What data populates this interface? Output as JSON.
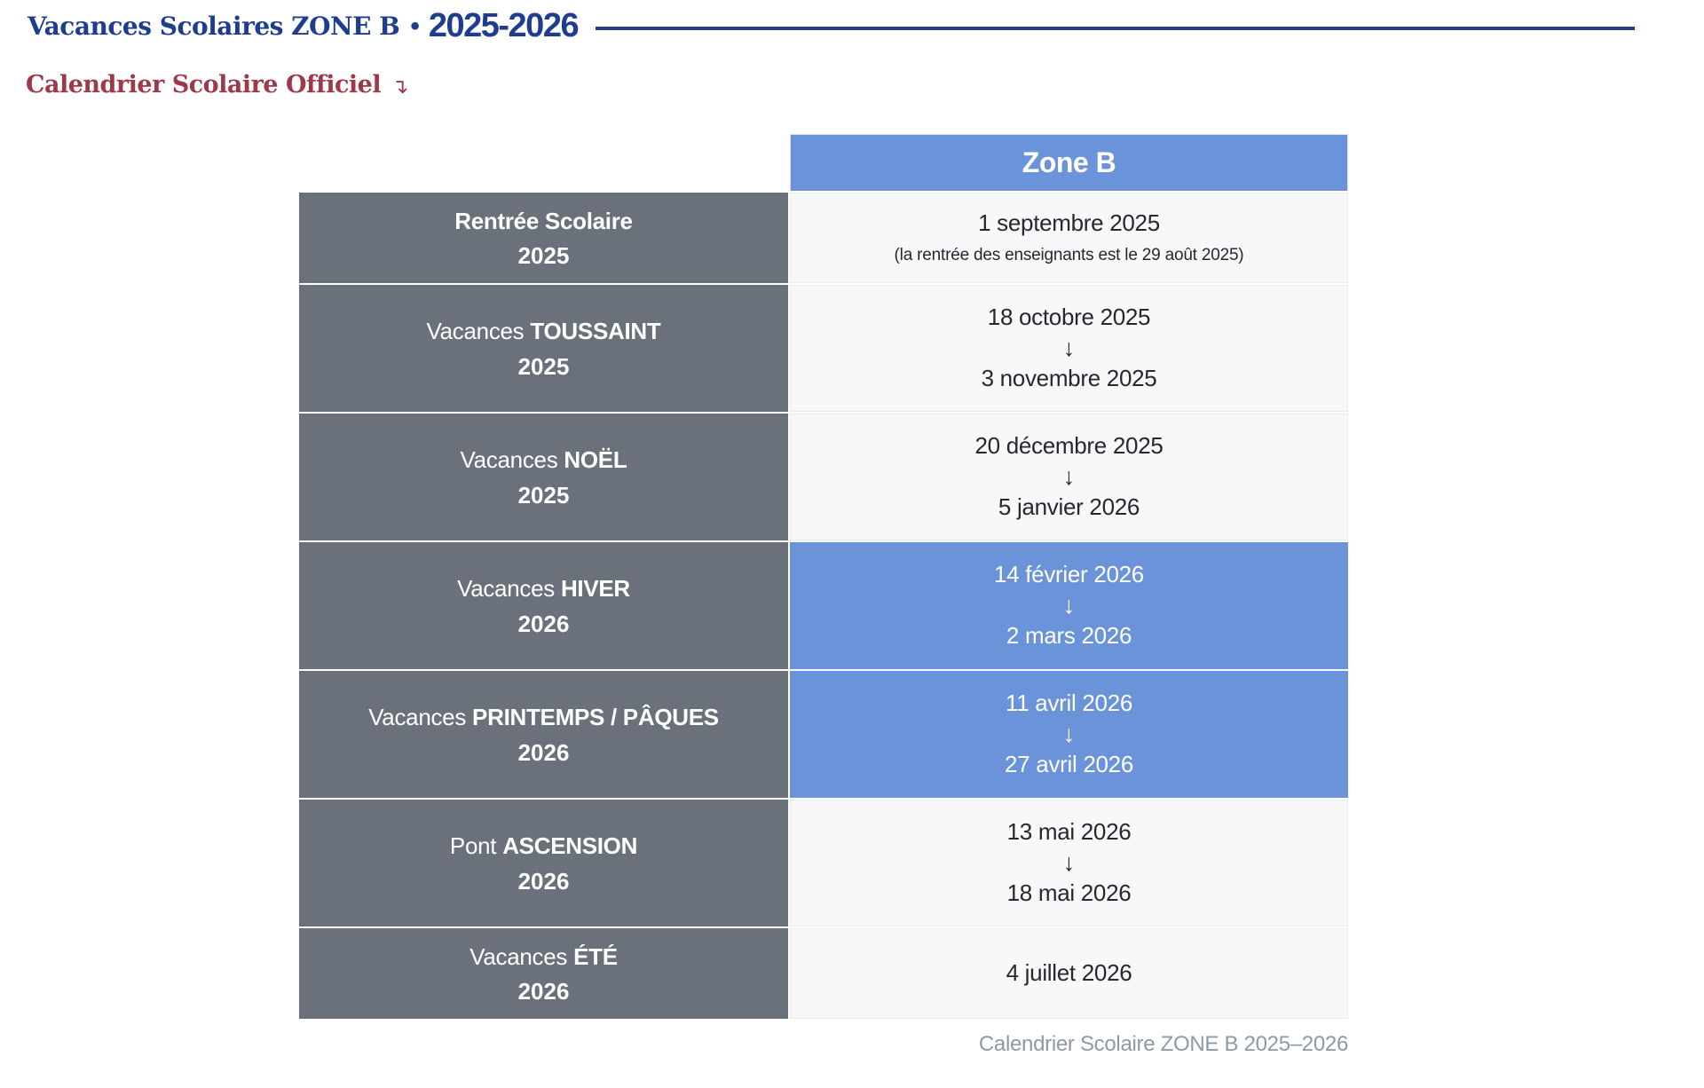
{
  "header": {
    "title_main": "Vacances Scolaires ZONE B",
    "separator": "•",
    "title_years": "2025-2026"
  },
  "link": {
    "label": "Calendrier Scolaire Officiel",
    "arrow_icon": "↴"
  },
  "table": {
    "column_header": "Zone B",
    "rows": [
      {
        "label_regular": "",
        "label_bold": "Rentrée Scolaire",
        "year": "2025",
        "highlight": false,
        "dates": [
          "1 septembre 2025"
        ],
        "note": "(la rentrée des enseignants est le 29 août 2025)"
      },
      {
        "label_regular": "Vacances",
        "label_bold": "TOUSSAINT",
        "year": "2025",
        "highlight": false,
        "dates": [
          "18 octobre 2025",
          "3 novembre 2025"
        ],
        "arrow_icon": "↓"
      },
      {
        "label_regular": "Vacances",
        "label_bold": "NOËL",
        "year": "2025",
        "highlight": false,
        "dates": [
          "20 décembre 2025",
          "5 janvier 2026"
        ],
        "arrow_icon": "↓"
      },
      {
        "label_regular": "Vacances",
        "label_bold": "HIVER",
        "year": "2026",
        "highlight": true,
        "dates": [
          "14 février 2026",
          "2 mars 2026"
        ],
        "arrow_icon": "↓"
      },
      {
        "label_regular": "Vacances",
        "label_bold": "PRINTEMPS / PÂQUES",
        "year": "2026",
        "highlight": true,
        "dates": [
          "11 avril 2026",
          "27 avril 2026"
        ],
        "arrow_icon": "↓"
      },
      {
        "label_regular": "Pont",
        "label_bold": "ASCENSION",
        "year": "2026",
        "highlight": false,
        "dates": [
          "13 mai 2026",
          "18 mai 2026"
        ],
        "arrow_icon": "↓"
      },
      {
        "label_regular": "Vacances",
        "label_bold": "ÉTÉ",
        "year": "2026",
        "highlight": false,
        "dates": [
          "4 juillet 2026"
        ]
      }
    ],
    "caption": "Calendrier Scolaire ZONE B 2025–2026"
  },
  "colors": {
    "title_navy": "#1e3d8f",
    "link_red": "#9e394c",
    "label_slate": "#6a717a",
    "accent_blue": "#6b93da",
    "cell_light": "#f7f8f9",
    "text_dark": "#26282c",
    "caption_gray": "#8d99a6"
  }
}
